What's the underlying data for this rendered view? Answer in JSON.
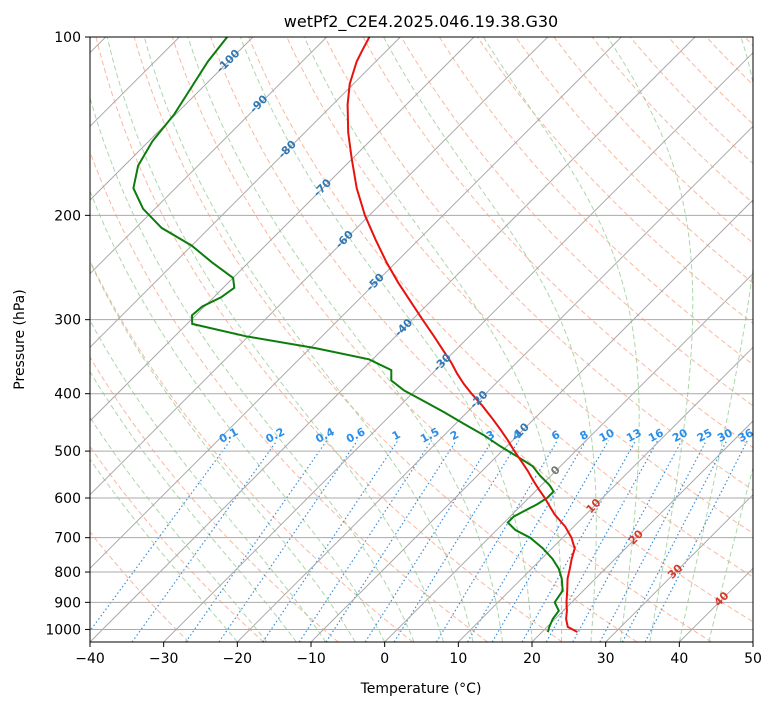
{
  "chart_data": {
    "type": "line",
    "title": "wetPf2_C2E4.2025.046.19.38.G30",
    "xlabel": "Temperature (°C)",
    "ylabel": "Pressure (hPa)",
    "xlim": [
      -40,
      50
    ],
    "ylim": [
      1050,
      100
    ],
    "yscale": "log",
    "grid": true,
    "legend": "none",
    "x_ticks": [
      -40,
      -30,
      -20,
      -10,
      0,
      10,
      20,
      30,
      40,
      50
    ],
    "x_tick_labels": [
      "−40",
      "−30",
      "−20",
      "−10",
      "0",
      "10",
      "20",
      "30",
      "40",
      "50"
    ],
    "y_ticks": [
      1000,
      900,
      800,
      700,
      600,
      500,
      400,
      300,
      200,
      100
    ],
    "y_tick_labels": [
      "1000",
      "900",
      "800",
      "700",
      "600",
      "500",
      "400",
      "300",
      "200",
      "100"
    ],
    "skew_isotherm_labels": {
      "values": [
        -100,
        -90,
        -80,
        -70,
        -60,
        -50,
        -40,
        -30,
        -20,
        -10,
        0,
        10,
        20,
        30,
        40
      ],
      "labels": [
        "-100",
        "-90",
        "-80",
        "-70",
        "-60",
        "-50",
        "-40",
        "-30",
        "-20",
        "-10",
        "0",
        "10",
        "20",
        "30",
        "40"
      ],
      "pressures": [
        110,
        130,
        155,
        180,
        220,
        260,
        310,
        355,
        410,
        465,
        540,
        620,
        700,
        800,
        890
      ]
    },
    "mixing_ratio_labels": {
      "values": [
        0.1,
        0.2,
        0.4,
        0.6,
        1,
        1.5,
        2,
        3,
        4,
        6,
        8,
        10,
        13,
        16,
        20,
        25,
        30,
        36
      ],
      "labels": [
        "0.1",
        "0.2",
        "0.4",
        "0.6",
        "1",
        "1.5",
        "2",
        "3",
        "4",
        "6",
        "8",
        "10",
        "13",
        "16",
        "20",
        "25",
        "30",
        "36"
      ],
      "label_pressure": 480
    },
    "colors": {
      "temperature": "#e8120c",
      "dewpoint": "#0c7d0c",
      "isotherm": "#aaaaaa",
      "dry_adiabat": "#f7a080",
      "moist_adiabat": "#9dcf9d",
      "mixing_ratio": "#3b8fd8",
      "isotherm_label_cold": "#2f78b5",
      "isotherm_label_hot": "#d63a2a",
      "mixing_label": "#2a8ee8"
    },
    "series": [
      {
        "key": "temperature",
        "pressure": [
          1010,
          990,
          960,
          930,
          900,
          860,
          820,
          790,
          760,
          730,
          700,
          670,
          640,
          620,
          600,
          580,
          560,
          540,
          520,
          500,
          480,
          460,
          440,
          420,
          400,
          385,
          370,
          355,
          340,
          320,
          300,
          280,
          260,
          240,
          220,
          200,
          180,
          160,
          145,
          130,
          120,
          110,
          105,
          100
        ],
        "temperature": [
          24.8,
          22.8,
          21.5,
          20.5,
          19.3,
          17.8,
          16.2,
          15.2,
          14.1,
          13.1,
          11.2,
          8.8,
          5.8,
          4.0,
          2.2,
          0.2,
          -1.8,
          -3.8,
          -6.0,
          -8.3,
          -10.6,
          -13.1,
          -15.8,
          -18.7,
          -21.9,
          -24.3,
          -26.6,
          -28.8,
          -31.3,
          -34.8,
          -38.6,
          -42.6,
          -46.9,
          -51.3,
          -55.8,
          -60.6,
          -65.4,
          -70.2,
          -74.1,
          -78.0,
          -80.5,
          -82.6,
          -83.4,
          -84.2
        ]
      },
      {
        "key": "dewpoint",
        "pressure": [
          1010,
          990,
          960,
          930,
          900,
          860,
          820,
          790,
          760,
          730,
          700,
          680,
          660,
          645,
          630,
          615,
          600,
          585,
          570,
          550,
          530,
          510,
          490,
          470,
          450,
          430,
          410,
          395,
          380,
          365,
          350,
          335,
          320,
          305,
          295,
          285,
          275,
          265,
          255,
          240,
          225,
          210,
          195,
          180,
          165,
          150,
          135,
          120,
          110,
          100
        ],
        "temperature": [
          20.8,
          20.3,
          19.7,
          19.4,
          17.7,
          17.2,
          15.4,
          13.7,
          11.5,
          8.8,
          5.6,
          2.6,
          0.5,
          0.5,
          1.2,
          2.0,
          2.5,
          2.5,
          1.0,
          -1.5,
          -3.8,
          -7.3,
          -11.0,
          -14.6,
          -18.8,
          -23.1,
          -27.8,
          -31.5,
          -34.6,
          -36.0,
          -40.5,
          -49.3,
          -60.3,
          -69.3,
          -70.5,
          -70.3,
          -69.0,
          -68.5,
          -70.0,
          -75.0,
          -80.0,
          -86.5,
          -91.6,
          -95.7,
          -98.1,
          -99.5,
          -100.2,
          -101.7,
          -102.8,
          -103.5
        ]
      }
    ]
  }
}
